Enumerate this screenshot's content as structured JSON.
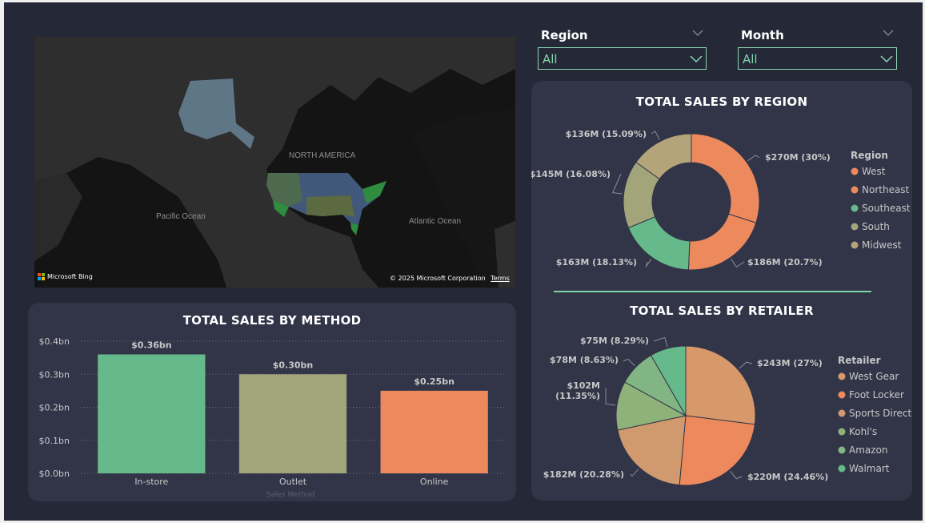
{
  "filters": {
    "region": {
      "label": "Region",
      "value": "All"
    },
    "month": {
      "label": "Month",
      "value": "All"
    }
  },
  "map": {
    "continent_label": "NORTH AMERICA",
    "pacific_label": "Pacific Ocean",
    "atlantic_label": "Atlantic Ocean",
    "brand": "Microsoft Bing",
    "copyright": "© 2025 Microsoft Corporation",
    "terms": "Terms"
  },
  "colors": {
    "green": "#66b98a",
    "olive": "#a2a47a",
    "orange": "#ec8a5e",
    "tan": "#d8996a",
    "sage": "#97b77e",
    "khaki": "#b3a479"
  },
  "chart_data": [
    {
      "type": "bar",
      "title": "TOTAL SALES BY METHOD",
      "xlabel": "Sales Method",
      "ylabel": "",
      "categories": [
        "In-store",
        "Outlet",
        "Online"
      ],
      "values": [
        0.36,
        0.3,
        0.25
      ],
      "data_labels": [
        "$0.36bn",
        "$0.30bn",
        "$0.25bn"
      ],
      "colors": [
        "#66b98a",
        "#a2a47a",
        "#ec8a5e"
      ],
      "y_ticks": [
        "$0.0bn",
        "$0.1bn",
        "$0.2bn",
        "$0.3bn",
        "$0.4bn"
      ],
      "ylim": [
        0,
        0.4
      ],
      "grid": true
    },
    {
      "type": "pie",
      "donut": true,
      "title": "TOTAL SALES BY REGION",
      "legend_title": "Region",
      "legend_position": "right",
      "slices": [
        {
          "name": "West",
          "value": 270,
          "label": "$270M (30%)",
          "color": "#ec8a5e"
        },
        {
          "name": "Northeast",
          "value": 186,
          "label": "$186M (20.7%)",
          "color": "#ec8a5e"
        },
        {
          "name": "Southeast",
          "value": 163,
          "label": "$163M (18.13%)",
          "color": "#66b98a"
        },
        {
          "name": "South",
          "value": 145,
          "label": "$145M (16.08%)",
          "color": "#a2a47a"
        },
        {
          "name": "Midwest",
          "value": 136,
          "label": "$136M (15.09%)",
          "color": "#b3a479"
        }
      ]
    },
    {
      "type": "pie",
      "donut": false,
      "title": "TOTAL SALES BY RETAILER",
      "legend_title": "Retailer",
      "legend_position": "right",
      "slices": [
        {
          "name": "West Gear",
          "value": 243,
          "label": "$243M (27%)",
          "color": "#d8996a"
        },
        {
          "name": "Foot Locker",
          "value": 220,
          "label": "$220M (24.46%)",
          "color": "#ec8a5e"
        },
        {
          "name": "Sports Direct",
          "value": 182,
          "label": "$182M (20.28%)",
          "color": "#d19a6e"
        },
        {
          "name": "Kohl's",
          "value": 102,
          "label_lines": [
            "$102M",
            "(11.35%)"
          ],
          "color": "#8fb27a"
        },
        {
          "name": "Amazon",
          "value": 78,
          "label": "$78M (8.63%)",
          "color": "#82b584"
        },
        {
          "name": "Walmart",
          "value": 75,
          "label": "$75M (8.29%)",
          "color": "#66b98a"
        }
      ]
    }
  ]
}
